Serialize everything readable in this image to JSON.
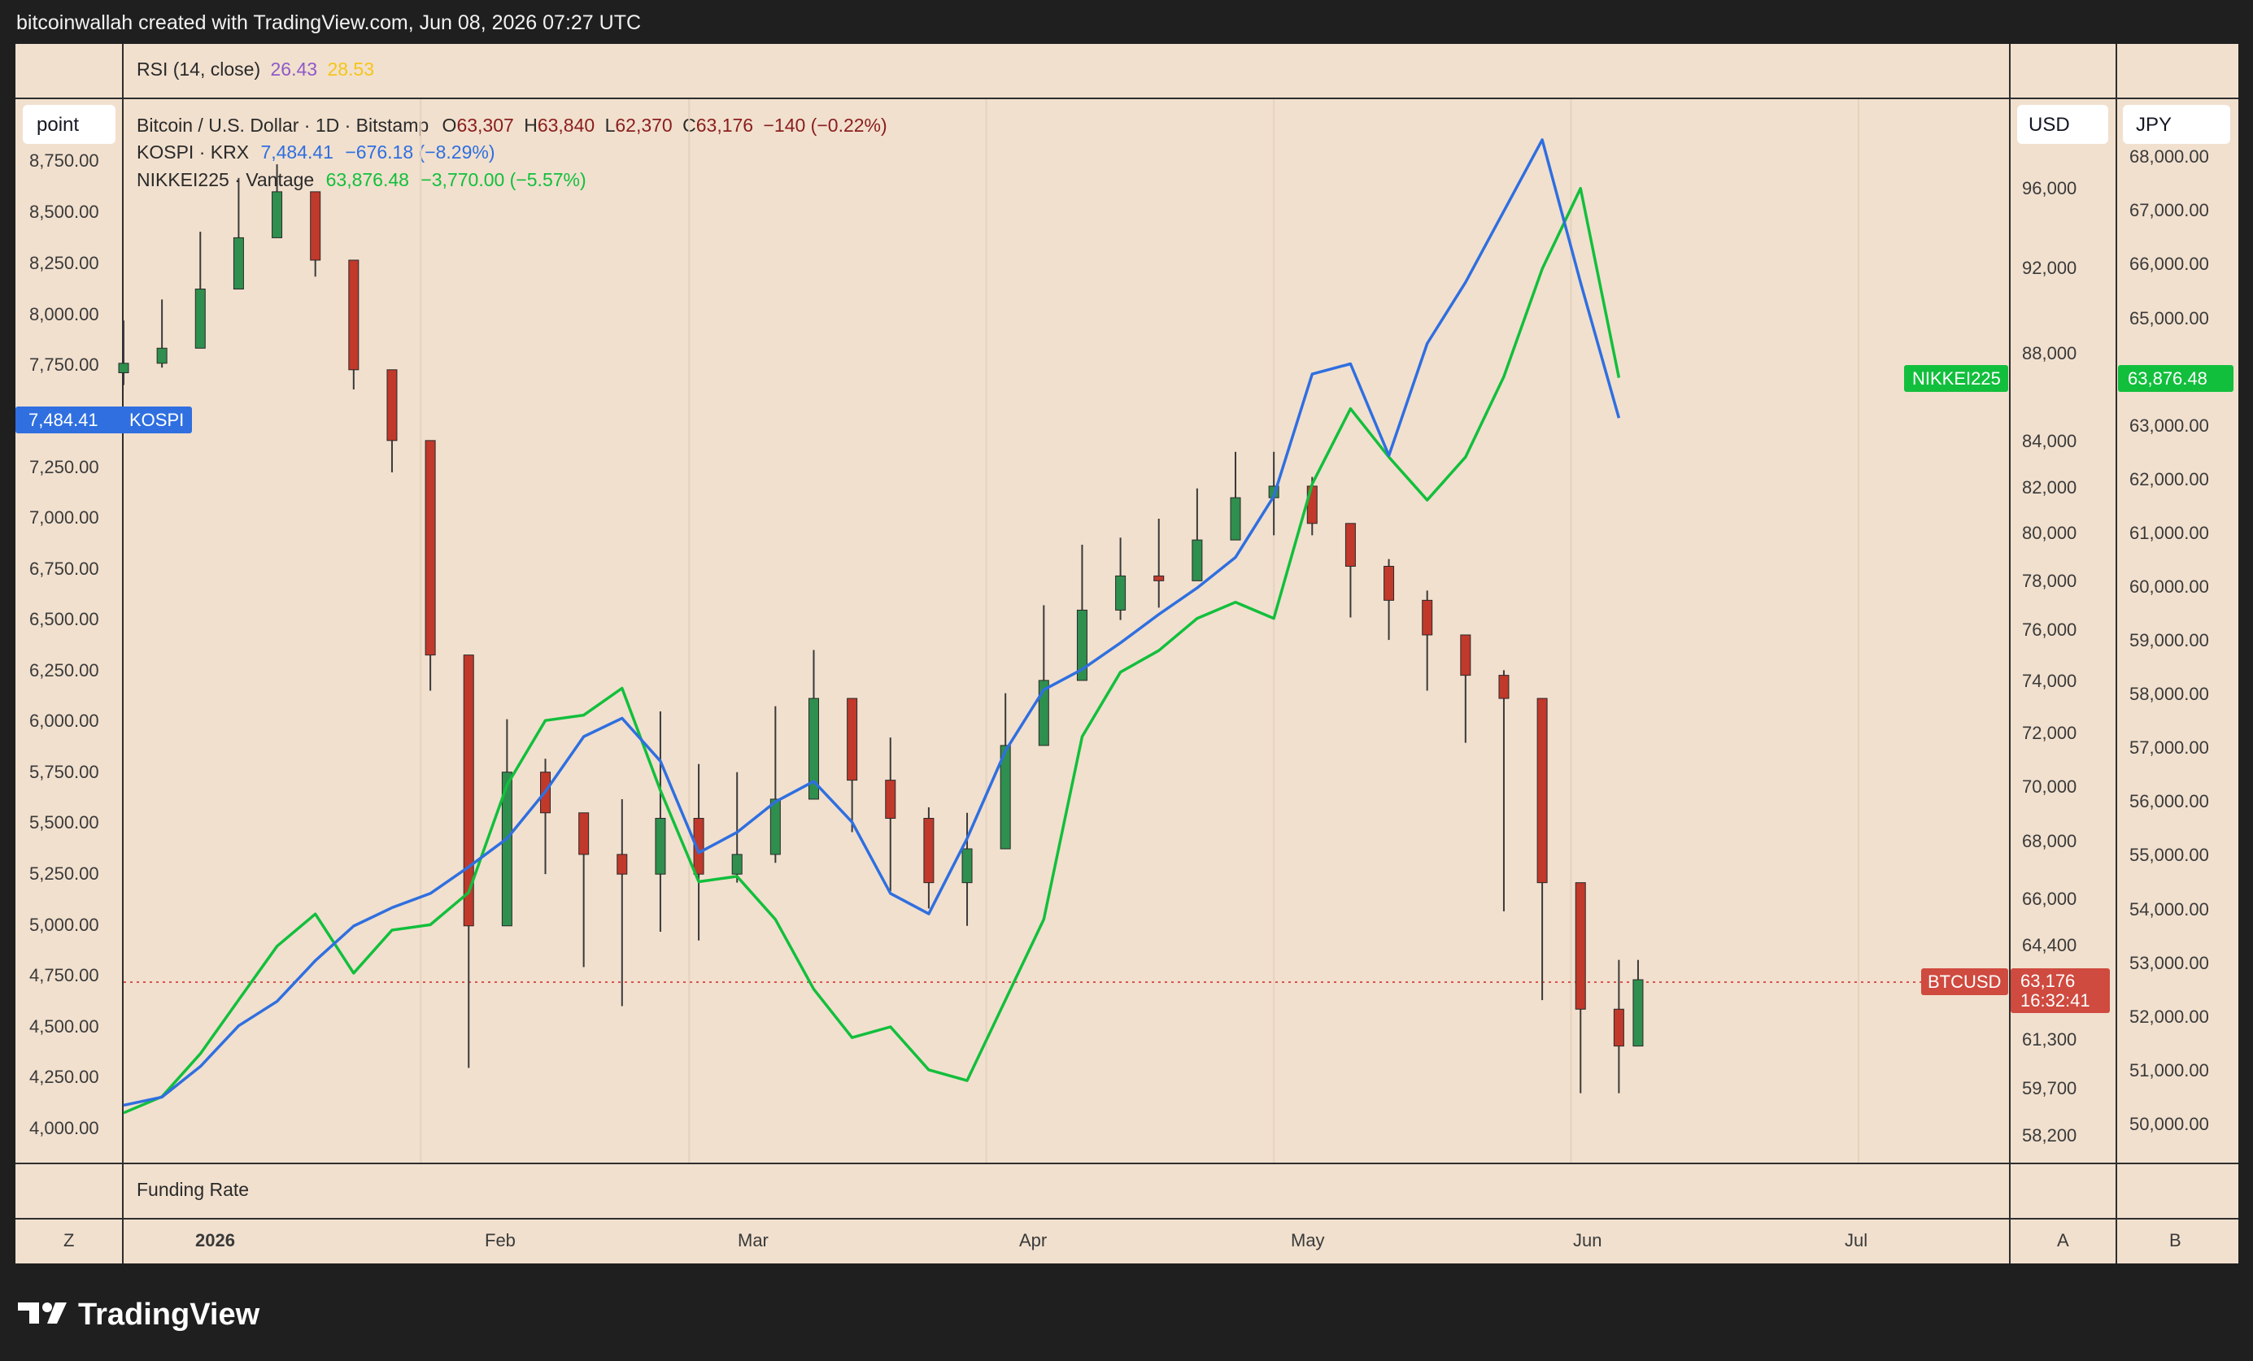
{
  "header": {
    "created_by": "bitcoinwallah created with TradingView.com, Jun 08, 2026 07:27 UTC"
  },
  "panes": {
    "rsi": {
      "label": "RSI (14, close)",
      "value1": "26.43",
      "value2": "28.53",
      "color1": "#8e5ac8",
      "color2": "#f5c518"
    },
    "funding": {
      "label": "Funding Rate"
    }
  },
  "legend": {
    "btc": {
      "name": "Bitcoin / U.S. Dollar · 1D · Bitstamp",
      "o_label": "O",
      "o": "63,307",
      "h_label": "H",
      "h": "63,840",
      "l_label": "L",
      "l": "62,370",
      "c_label": "C",
      "c": "63,176",
      "change": "−140 (−0.22%)"
    },
    "kospi": {
      "name": "KOSPI · KRX",
      "value": "7,484.41",
      "change": "−676.18 (−8.29%)",
      "color": "#2f6fe0"
    },
    "nikkei": {
      "name": "NIKKEI225 · Vantage",
      "value": "63,876.48",
      "change": "−3,770.00 (−5.57%)",
      "color": "#12bf3c"
    }
  },
  "scale_buttons": {
    "left": "point",
    "right1": "USD",
    "right2": "JPY",
    "bottom_left": "Z",
    "bottom_right1": "A",
    "bottom_right2": "B"
  },
  "left_axis": {
    "ticks": [
      "8,750.00",
      "8,500.00",
      "8,250.00",
      "8,000.00",
      "7,750.00",
      "7,250.00",
      "7,000.00",
      "6,750.00",
      "6,500.00",
      "6,250.00",
      "6,000.00",
      "5,750.00",
      "5,500.00",
      "5,250.00",
      "5,000.00",
      "4,750.00",
      "4,500.00",
      "4,250.00",
      "4,000.00"
    ]
  },
  "usd_axis": {
    "ticks": [
      "96,000",
      "92,000",
      "88,000",
      "84,000",
      "82,000",
      "80,000",
      "78,000",
      "76,000",
      "74,000",
      "72,000",
      "70,000",
      "68,000",
      "66,000",
      "64,400",
      "61,300",
      "59,700",
      "58,200"
    ]
  },
  "jpy_axis": {
    "ticks": [
      "68,000.00",
      "67,000.00",
      "66,000.00",
      "65,000.00",
      "63,000.00",
      "62,000.00",
      "61,000.00",
      "60,000.00",
      "59,000.00",
      "58,000.00",
      "57,000.00",
      "56,000.00",
      "55,000.00",
      "54,000.00",
      "53,000.00",
      "52,000.00",
      "51,000.00",
      "50,000.00"
    ]
  },
  "time_axis": {
    "ticks": [
      "2026",
      "Feb",
      "Mar",
      "Apr",
      "May",
      "Jun",
      "Jul"
    ]
  },
  "price_tags": {
    "kospi_value": "7,484.41",
    "kospi_label": "KOSPI",
    "nikkei_label": "NIKKEI225",
    "nikkei_value": "63,876.48",
    "btc_label": "BTCUSD",
    "btc_value": "63,176",
    "btc_countdown": "16:32:41"
  },
  "footer": {
    "brand": "TradingView"
  },
  "chart_data": [
    {
      "type": "line",
      "series": [
        {
          "name": "KOSPI",
          "color": "#2f6fe0",
          "x": [
            "2026-01-01",
            "2026-01-05",
            "2026-01-09",
            "2026-01-13",
            "2026-01-17",
            "2026-01-21",
            "2026-01-25",
            "2026-01-29",
            "2026-02-02",
            "2026-02-06",
            "2026-02-10",
            "2026-02-14",
            "2026-02-18",
            "2026-02-22",
            "2026-02-26",
            "2026-03-02",
            "2026-03-06",
            "2026-03-10",
            "2026-03-14",
            "2026-03-18",
            "2026-03-22",
            "2026-03-26",
            "2026-03-30",
            "2026-04-03",
            "2026-04-07",
            "2026-04-11",
            "2026-04-15",
            "2026-04-19",
            "2026-04-23",
            "2026-04-27",
            "2026-05-01",
            "2026-05-05",
            "2026-05-09",
            "2026-05-13",
            "2026-05-17",
            "2026-05-21",
            "2026-05-25",
            "2026-05-29",
            "2026-06-02",
            "2026-06-06"
          ],
          "values": [
            4110,
            4150,
            4300,
            4500,
            4620,
            4820,
            4990,
            5080,
            5150,
            5280,
            5420,
            5650,
            5920,
            6010,
            5800,
            5350,
            5450,
            5600,
            5700,
            5500,
            5150,
            5050,
            5420,
            5850,
            6150,
            6250,
            6380,
            6520,
            6650,
            6800,
            7100,
            7700,
            7750,
            7300,
            7850,
            8150,
            8500,
            8850,
            8150,
            7484
          ]
        },
        {
          "name": "NIKKEI225",
          "color": "#12bf3c",
          "x": [
            "2026-01-01",
            "2026-01-05",
            "2026-01-09",
            "2026-01-13",
            "2026-01-17",
            "2026-01-21",
            "2026-01-25",
            "2026-01-29",
            "2026-02-02",
            "2026-02-06",
            "2026-02-10",
            "2026-02-14",
            "2026-02-18",
            "2026-02-22",
            "2026-02-26",
            "2026-03-02",
            "2026-03-06",
            "2026-03-10",
            "2026-03-14",
            "2026-03-18",
            "2026-03-22",
            "2026-03-26",
            "2026-03-30",
            "2026-04-03",
            "2026-04-07",
            "2026-04-11",
            "2026-04-15",
            "2026-04-19",
            "2026-04-23",
            "2026-04-27",
            "2026-05-01",
            "2026-05-05",
            "2026-05-09",
            "2026-05-13",
            "2026-05-17",
            "2026-05-21",
            "2026-05-25",
            "2026-05-29",
            "2026-06-02",
            "2026-06-06"
          ],
          "values": [
            50200,
            50500,
            51300,
            52300,
            53300,
            53900,
            52800,
            53600,
            53700,
            54300,
            56300,
            57500,
            57600,
            58100,
            56200,
            54500,
            54600,
            53800,
            52500,
            51600,
            51800,
            51000,
            50800,
            52300,
            53800,
            57200,
            58400,
            58800,
            59400,
            59700,
            59400,
            61900,
            63300,
            62400,
            61600,
            62400,
            63900,
            65900,
            67400,
            63876
          ]
        }
      ]
    },
    {
      "type": "candlestick",
      "series": [
        {
          "name": "BTCUSD",
          "x": [
            "2026-01-01",
            "2026-01-05",
            "2026-01-09",
            "2026-01-13",
            "2026-01-17",
            "2026-01-21",
            "2026-01-25",
            "2026-01-29",
            "2026-02-02",
            "2026-02-06",
            "2026-02-10",
            "2026-02-14",
            "2026-02-18",
            "2026-02-22",
            "2026-02-26",
            "2026-03-02",
            "2026-03-06",
            "2026-03-10",
            "2026-03-14",
            "2026-03-18",
            "2026-03-22",
            "2026-03-26",
            "2026-03-30",
            "2026-04-03",
            "2026-04-07",
            "2026-04-11",
            "2026-04-15",
            "2026-04-19",
            "2026-04-23",
            "2026-04-27",
            "2026-05-01",
            "2026-05-05",
            "2026-05-09",
            "2026-05-13",
            "2026-05-17",
            "2026-05-21",
            "2026-05-25",
            "2026-05-29",
            "2026-06-02",
            "2026-06-06",
            "2026-06-08"
          ],
          "close": [
            87500,
            88200,
            91000,
            93500,
            95800,
            92400,
            87200,
            84000,
            75000,
            65000,
            70500,
            69000,
            67500,
            66800,
            68800,
            66800,
            67500,
            69500,
            73300,
            70200,
            68800,
            66500,
            67700,
            71500,
            74000,
            76800,
            78200,
            78000,
            79700,
            81500,
            82000,
            80400,
            78600,
            77200,
            75800,
            74200,
            73300,
            66500,
            62200,
            61000,
            63176
          ],
          "high": [
            89500,
            90500,
            93800,
            96500,
            97200,
            95000,
            89000,
            85500,
            76500,
            71500,
            72500,
            71000,
            68500,
            69500,
            72800,
            70800,
            70500,
            73000,
            75200,
            72500,
            71800,
            69200,
            69000,
            73500,
            77000,
            79500,
            79800,
            80600,
            81900,
            83500,
            83500,
            82400,
            80300,
            78900,
            77600,
            74400,
            74400,
            67000,
            64000,
            63840,
            63840
          ],
          "low": [
            86500,
            87300,
            90200,
            92600,
            94600,
            91600,
            86300,
            82600,
            73600,
            60300,
            65600,
            66800,
            63600,
            62300,
            64800,
            64500,
            66500,
            67200,
            69600,
            68300,
            66200,
            65600,
            65000,
            70300,
            73500,
            74800,
            76400,
            76900,
            79300,
            80300,
            79900,
            79900,
            76500,
            75600,
            73600,
            71600,
            65500,
            62500,
            59500,
            59500,
            62370
          ]
        }
      ]
    }
  ]
}
